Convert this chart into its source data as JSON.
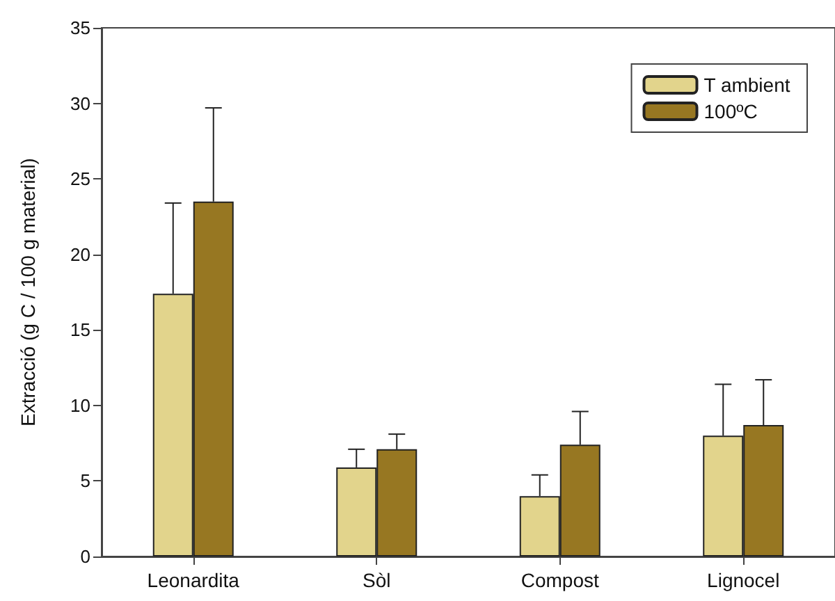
{
  "chart_data": {
    "type": "bar",
    "ylabel": "Extracció (g C / 100 g material)",
    "categories": [
      "Leonardita",
      "Sòl",
      "Compost",
      "Lignocel"
    ],
    "series": [
      {
        "name": "T ambient",
        "color": "#e2d48c",
        "values": [
          17.4,
          5.9,
          4.0,
          8.0
        ],
        "errors": [
          [
            17.4,
            23.4
          ],
          [
            5.9,
            7.1
          ],
          [
            4.0,
            5.4
          ],
          [
            8.0,
            11.4
          ]
        ]
      },
      {
        "name": "100ºC",
        "color": "#977722",
        "values": [
          23.5,
          7.1,
          7.4,
          8.7
        ],
        "errors": [
          [
            23.5,
            29.7
          ],
          [
            7.1,
            8.1
          ],
          [
            7.4,
            9.6
          ],
          [
            8.7,
            11.7
          ]
        ]
      }
    ],
    "ylim": [
      0,
      35
    ],
    "yticks": [
      0,
      5,
      10,
      15,
      20,
      25,
      30,
      35
    ],
    "grid": false,
    "legend": "top right"
  }
}
